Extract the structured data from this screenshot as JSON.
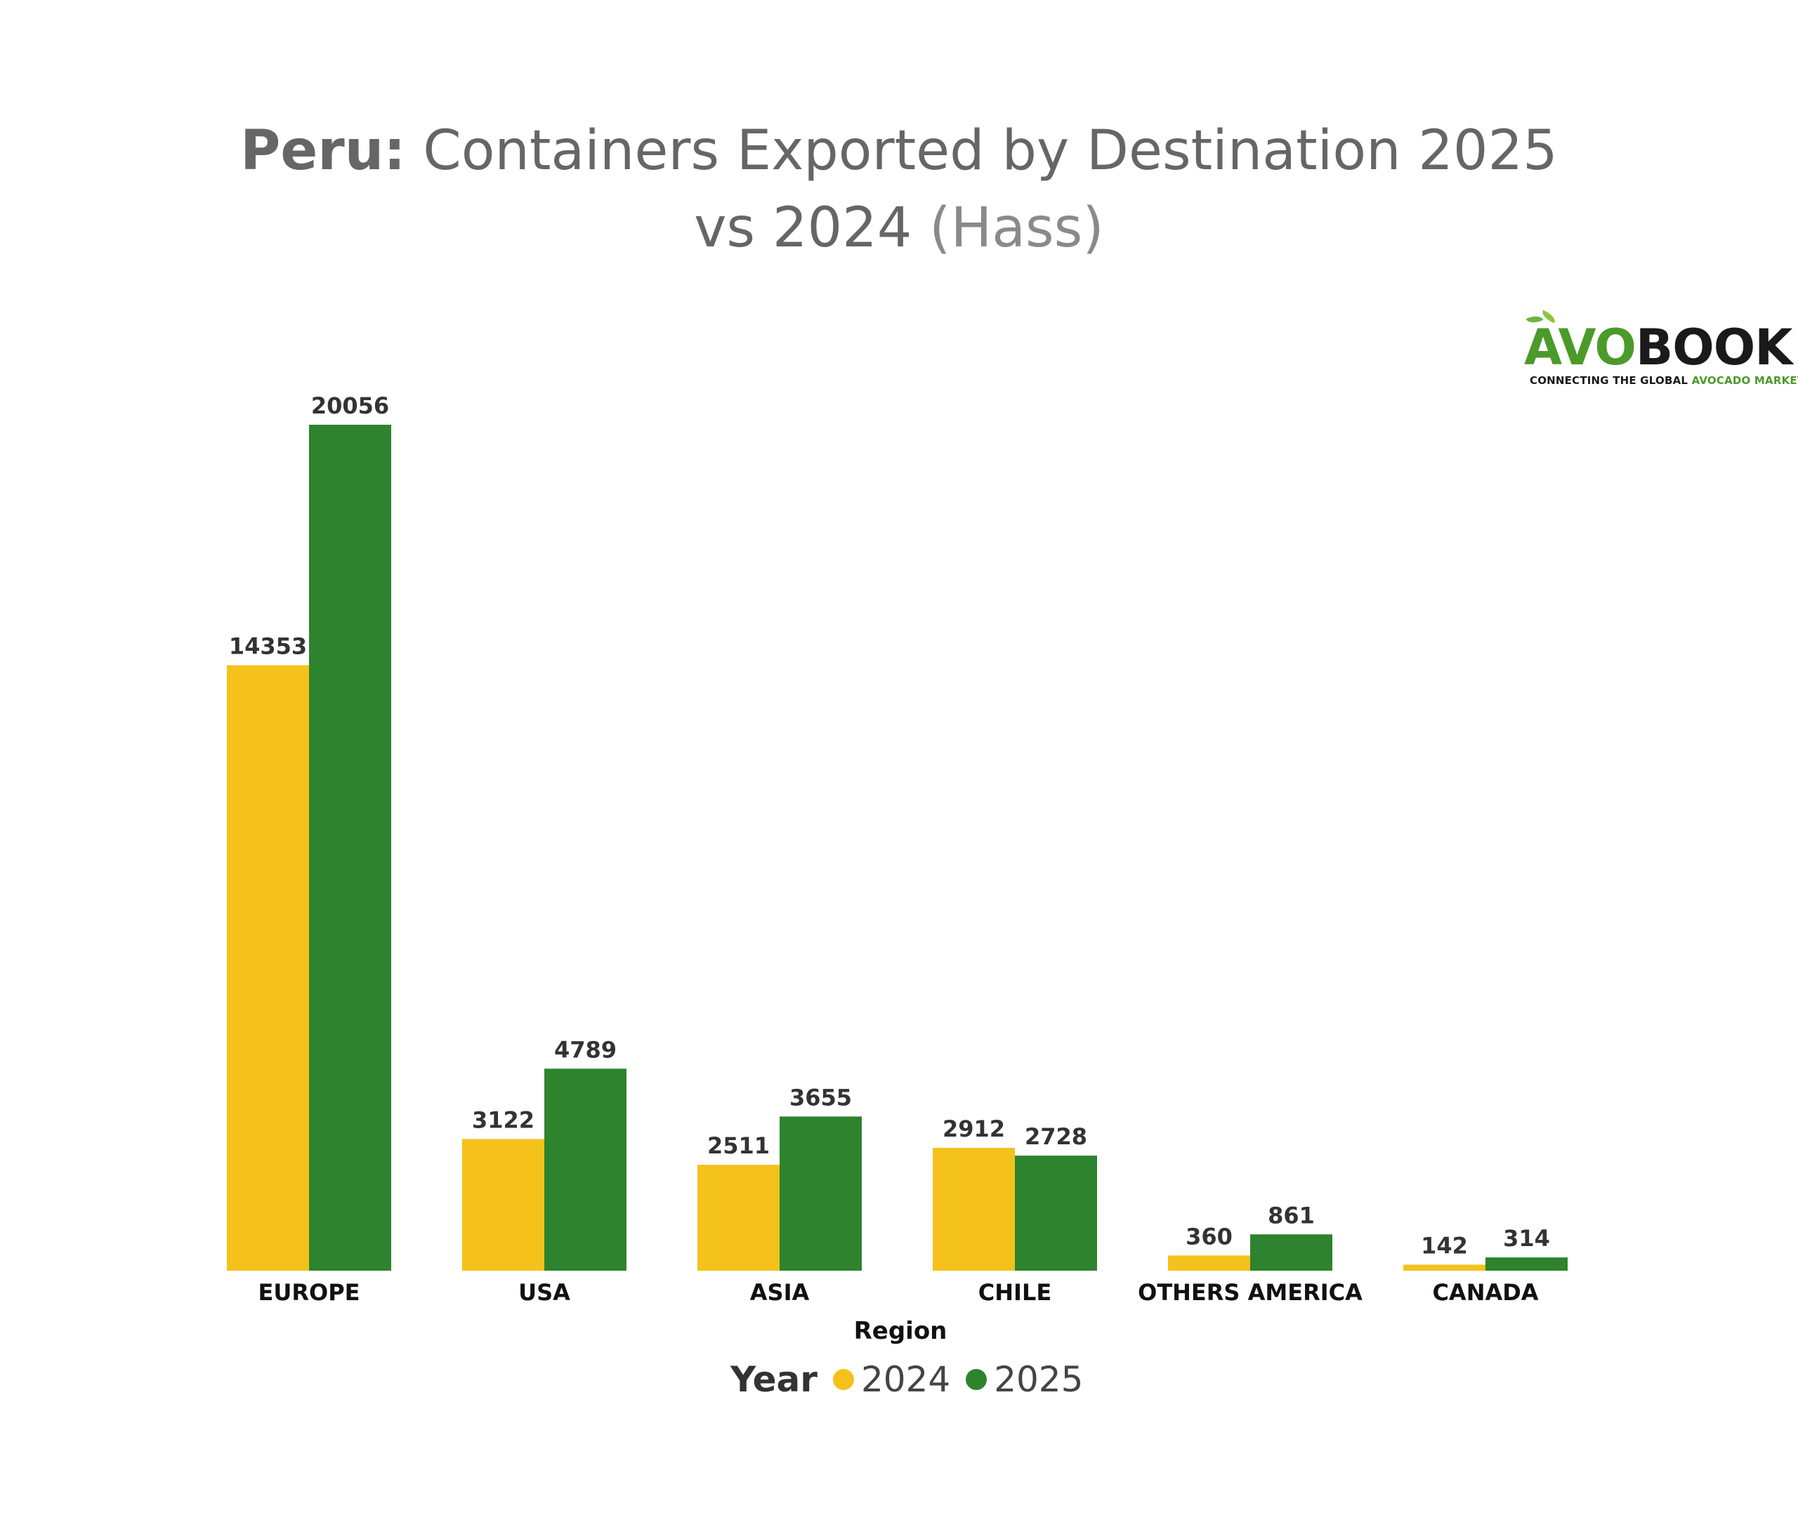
{
  "title": {
    "bold": "Peru:",
    "main": " Containers Exported by Destination 2025 vs 2024",
    "muted": " (Hass)"
  },
  "logo": {
    "avo": "AVO",
    "book": "BOOK",
    "tagline_dark": "CONNECTING THE GLOBAL ",
    "tagline_green": "AVOCADO MARKET"
  },
  "colors": {
    "series_2024": "#f4c21b",
    "series_2025": "#2e832e"
  },
  "chart_data": {
    "type": "bar",
    "title": "Peru: Containers Exported by Destination 2025 vs 2024 (Hass)",
    "xlabel": "Region",
    "ylabel": "",
    "categories": [
      "EUROPE",
      "USA",
      "ASIA",
      "CHILE",
      "OTHERS AMERICA",
      "CANADA"
    ],
    "series": [
      {
        "name": "2024",
        "values": [
          14353,
          3122,
          2511,
          2912,
          360,
          142
        ]
      },
      {
        "name": "2025",
        "values": [
          20056,
          4789,
          3655,
          2728,
          861,
          314
        ]
      }
    ],
    "ylim": [
      0,
      20056
    ],
    "grid": false,
    "legend": {
      "title": "Year",
      "position": "bottom-center"
    }
  }
}
